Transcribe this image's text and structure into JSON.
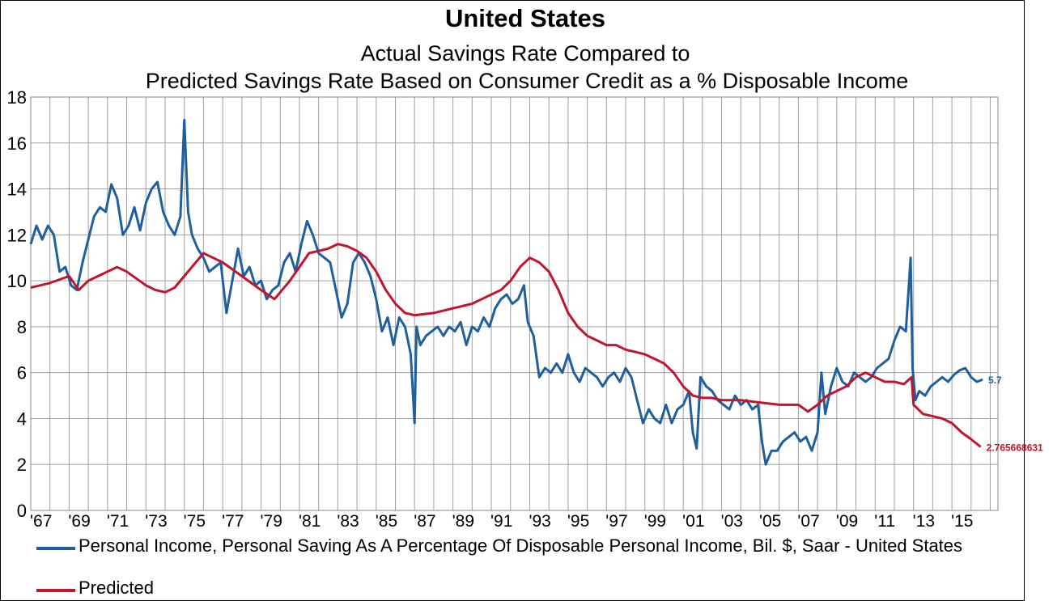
{
  "chart_data": {
    "type": "line",
    "title": "United States",
    "subtitle_lines": [
      "Actual Savings Rate Compared to",
      "Predicted Savings Rate Based on Consumer Credit as a % Disposable Income"
    ],
    "xlabel": "",
    "ylabel": "",
    "ylim": [
      0,
      18
    ],
    "y_ticks": [
      "0",
      "2",
      "4",
      "6",
      "8",
      "10",
      "12",
      "14",
      "16",
      "18"
    ],
    "xlim": [
      1967,
      2017.4
    ],
    "x_tick_labels": [
      "'67",
      "'69",
      "'71",
      "'73",
      "'75",
      "'77",
      "'79",
      "'81",
      "'83",
      "'85",
      "'87",
      "'89",
      "'91",
      "'93",
      "'95",
      "'97",
      "'99",
      "'01",
      "'03",
      "'05",
      "'07",
      "'09",
      "'11",
      "'13",
      "'15"
    ],
    "grid": true,
    "legend_position": "bottom",
    "series": [
      {
        "name": "Personal Income, Personal Saving As A Percentage Of Disposable Personal Income, Bil. $, Saar - United States",
        "color": "#1f5f9f",
        "end_label": "5.7",
        "x": [
          1967.0,
          1967.3,
          1967.6,
          1967.9,
          1968.2,
          1968.5,
          1968.8,
          1969.1,
          1969.4,
          1969.7,
          1970.0,
          1970.3,
          1970.6,
          1970.9,
          1971.2,
          1971.5,
          1971.8,
          1972.1,
          1972.4,
          1972.7,
          1973.0,
          1973.3,
          1973.6,
          1973.9,
          1974.2,
          1974.5,
          1974.8,
          1975.0,
          1975.2,
          1975.4,
          1975.7,
          1976.0,
          1976.3,
          1976.6,
          1976.9,
          1977.2,
          1977.5,
          1977.8,
          1978.1,
          1978.4,
          1978.7,
          1979.0,
          1979.3,
          1979.6,
          1979.9,
          1980.2,
          1980.5,
          1980.8,
          1981.1,
          1981.4,
          1981.7,
          1982.0,
          1982.3,
          1982.6,
          1982.9,
          1983.2,
          1983.5,
          1983.8,
          1984.1,
          1984.4,
          1984.7,
          1985.0,
          1985.3,
          1985.6,
          1985.9,
          1986.2,
          1986.5,
          1986.8,
          1987.0,
          1987.1,
          1987.3,
          1987.6,
          1987.9,
          1988.2,
          1988.5,
          1988.8,
          1989.1,
          1989.4,
          1989.7,
          1990.0,
          1990.3,
          1990.6,
          1990.9,
          1991.2,
          1991.5,
          1991.8,
          1992.1,
          1992.4,
          1992.7,
          1992.9,
          1993.2,
          1993.5,
          1993.8,
          1994.1,
          1994.4,
          1994.7,
          1995.0,
          1995.3,
          1995.6,
          1995.9,
          1996.2,
          1996.5,
          1996.8,
          1997.1,
          1997.4,
          1997.7,
          1998.0,
          1998.3,
          1998.6,
          1998.9,
          1999.2,
          1999.5,
          1999.8,
          2000.1,
          2000.4,
          2000.7,
          2001.0,
          2001.3,
          2001.5,
          2001.7,
          2001.9,
          2002.2,
          2002.5,
          2002.8,
          2003.1,
          2003.4,
          2003.7,
          2004.0,
          2004.3,
          2004.6,
          2004.9,
          2005.1,
          2005.3,
          2005.6,
          2005.9,
          2006.2,
          2006.5,
          2006.8,
          2007.1,
          2007.4,
          2007.7,
          2008.0,
          2008.2,
          2008.4,
          2008.7,
          2009.0,
          2009.3,
          2009.6,
          2009.9,
          2010.2,
          2010.5,
          2010.8,
          2011.1,
          2011.4,
          2011.7,
          2012.0,
          2012.3,
          2012.6,
          2012.85,
          2012.95,
          2013.1,
          2013.3,
          2013.6,
          2013.9,
          2014.2,
          2014.5,
          2014.8,
          2015.1,
          2015.4,
          2015.7,
          2016.0,
          2016.3,
          2016.6
        ],
        "values": [
          11.6,
          12.4,
          11.8,
          12.4,
          12.0,
          10.4,
          10.6,
          9.8,
          9.6,
          10.8,
          11.8,
          12.8,
          13.2,
          13.0,
          14.2,
          13.6,
          12.0,
          12.4,
          13.2,
          12.2,
          13.4,
          14.0,
          14.3,
          13.0,
          12.4,
          12.0,
          12.8,
          17.0,
          13.0,
          12.0,
          11.4,
          11.0,
          10.4,
          10.6,
          10.8,
          8.6,
          10.0,
          11.4,
          10.2,
          10.6,
          9.8,
          10.0,
          9.2,
          9.6,
          9.8,
          10.8,
          11.2,
          10.4,
          11.6,
          12.6,
          12.0,
          11.2,
          11.0,
          10.8,
          9.6,
          8.4,
          9.0,
          10.8,
          11.2,
          10.8,
          10.2,
          9.2,
          7.8,
          8.4,
          7.2,
          8.4,
          8.0,
          6.8,
          3.8,
          8.0,
          7.2,
          7.6,
          7.8,
          8.0,
          7.6,
          8.0,
          7.8,
          8.2,
          7.2,
          8.0,
          7.8,
          8.4,
          8.0,
          8.8,
          9.2,
          9.4,
          9.0,
          9.2,
          9.8,
          8.2,
          7.6,
          5.8,
          6.2,
          6.0,
          6.4,
          6.0,
          6.8,
          6.0,
          5.6,
          6.2,
          6.0,
          5.8,
          5.4,
          5.8,
          6.0,
          5.6,
          6.2,
          5.8,
          4.8,
          3.8,
          4.4,
          4.0,
          3.8,
          4.6,
          3.8,
          4.4,
          4.6,
          5.2,
          3.4,
          2.7,
          5.8,
          5.4,
          5.2,
          4.8,
          4.6,
          4.4,
          5.0,
          4.6,
          4.8,
          4.4,
          4.6,
          3.0,
          2.0,
          2.6,
          2.6,
          3.0,
          3.2,
          3.4,
          3.0,
          3.2,
          2.6,
          3.4,
          6.0,
          4.2,
          5.4,
          6.2,
          5.6,
          5.4,
          6.0,
          5.8,
          5.6,
          5.8,
          6.2,
          6.4,
          6.6,
          7.4,
          8.0,
          7.8,
          11.0,
          6.2,
          4.8,
          5.2,
          5.0,
          5.4,
          5.6,
          5.8,
          5.6,
          5.9,
          6.1,
          6.2,
          5.8,
          5.6,
          5.7
        ]
      },
      {
        "name": "Predicted",
        "color": "#c0162d",
        "end_label": "2.765668631",
        "x": [
          1967.0,
          1968.0,
          1969.0,
          1969.5,
          1970.0,
          1971.0,
          1971.5,
          1972.0,
          1972.5,
          1973.0,
          1973.5,
          1974.0,
          1974.5,
          1975.0,
          1976.0,
          1977.0,
          1978.0,
          1979.0,
          1979.7,
          1980.5,
          1981.5,
          1982.5,
          1983.0,
          1983.5,
          1984.0,
          1984.5,
          1985.0,
          1985.5,
          1986.0,
          1986.5,
          1987.0,
          1988.0,
          1989.0,
          1990.0,
          1990.5,
          1991.0,
          1991.5,
          1992.0,
          1992.5,
          1993.0,
          1993.5,
          1994.0,
          1994.5,
          1995.0,
          1995.5,
          1996.0,
          1996.5,
          1997.0,
          1997.5,
          1998.0,
          1998.5,
          1999.0,
          1999.5,
          2000.0,
          2000.5,
          2001.0,
          2001.5,
          2002.0,
          2002.5,
          2003.0,
          2004.0,
          2005.0,
          2006.0,
          2007.0,
          2007.5,
          2008.0,
          2008.5,
          2009.0,
          2009.5,
          2010.0,
          2010.5,
          2011.0,
          2011.5,
          2012.0,
          2012.5,
          2012.9,
          2013.0,
          2013.5,
          2014.0,
          2014.5,
          2015.0,
          2015.5,
          2016.0,
          2016.5
        ],
        "values": [
          9.7,
          9.9,
          10.2,
          9.6,
          10.0,
          10.4,
          10.6,
          10.4,
          10.1,
          9.8,
          9.6,
          9.5,
          9.7,
          10.2,
          11.2,
          10.8,
          10.2,
          9.6,
          9.2,
          10.0,
          11.2,
          11.4,
          11.6,
          11.5,
          11.3,
          11.0,
          10.4,
          9.6,
          9.0,
          8.6,
          8.5,
          8.6,
          8.8,
          9.0,
          9.2,
          9.4,
          9.6,
          10.0,
          10.6,
          11.0,
          10.8,
          10.4,
          9.6,
          8.6,
          8.0,
          7.6,
          7.4,
          7.2,
          7.2,
          7.0,
          6.9,
          6.8,
          6.6,
          6.4,
          6.0,
          5.4,
          5.0,
          4.9,
          4.9,
          4.8,
          4.8,
          4.7,
          4.6,
          4.6,
          4.3,
          4.6,
          5.0,
          5.2,
          5.4,
          5.8,
          6.0,
          5.8,
          5.6,
          5.6,
          5.5,
          5.8,
          4.6,
          4.2,
          4.1,
          4.0,
          3.8,
          3.4,
          3.1,
          2.77
        ]
      }
    ]
  }
}
